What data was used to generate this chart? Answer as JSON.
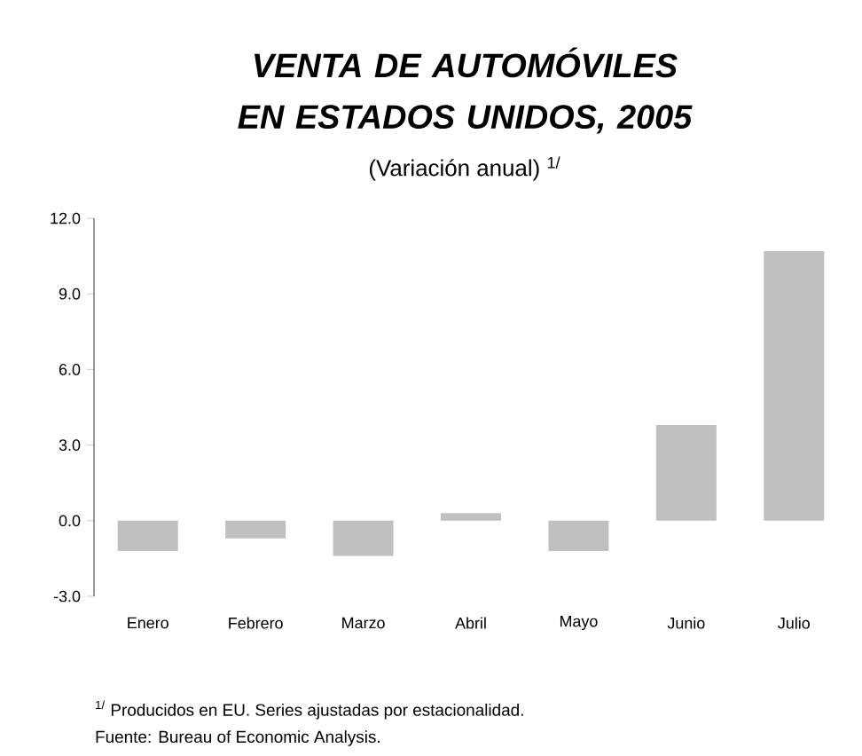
{
  "chart_data": {
    "type": "bar",
    "title": "VENTA DE AUTOMÓVILES EN ESTADOS UNIDOS, 2005",
    "subtitle": "(Variación anual) $^{1/}$",
    "categories": [
      "Enero",
      "Febrero",
      "Marzo",
      "Abril",
      "Mayo",
      "Junio",
      "Julio"
    ],
    "values": [
      -1.2,
      -0.7,
      -1.4,
      0.3,
      -1.2,
      3.8,
      10.7
    ],
    "color": "#c0c0c0",
    "ylim": [
      -3,
      12
    ],
    "yticks": [
      {
        "value": -3,
        "label": "-3.0"
      },
      {
        "value": 0,
        "label": "0.0"
      },
      {
        "value": 3,
        "label": "3.0"
      },
      {
        "value": 6,
        "label": "6.0"
      },
      {
        "value": 9,
        "label": "9.0"
      },
      {
        "value": 12,
        "label": "12.0"
      }
    ],
    "grid": false,
    "annotations": [
      "$^{1/}$ Producidos en EU. Series ajustadas por estacionalidad.",
      "Fuente: Bureau of Economic Analysis."
    ]
  }
}
